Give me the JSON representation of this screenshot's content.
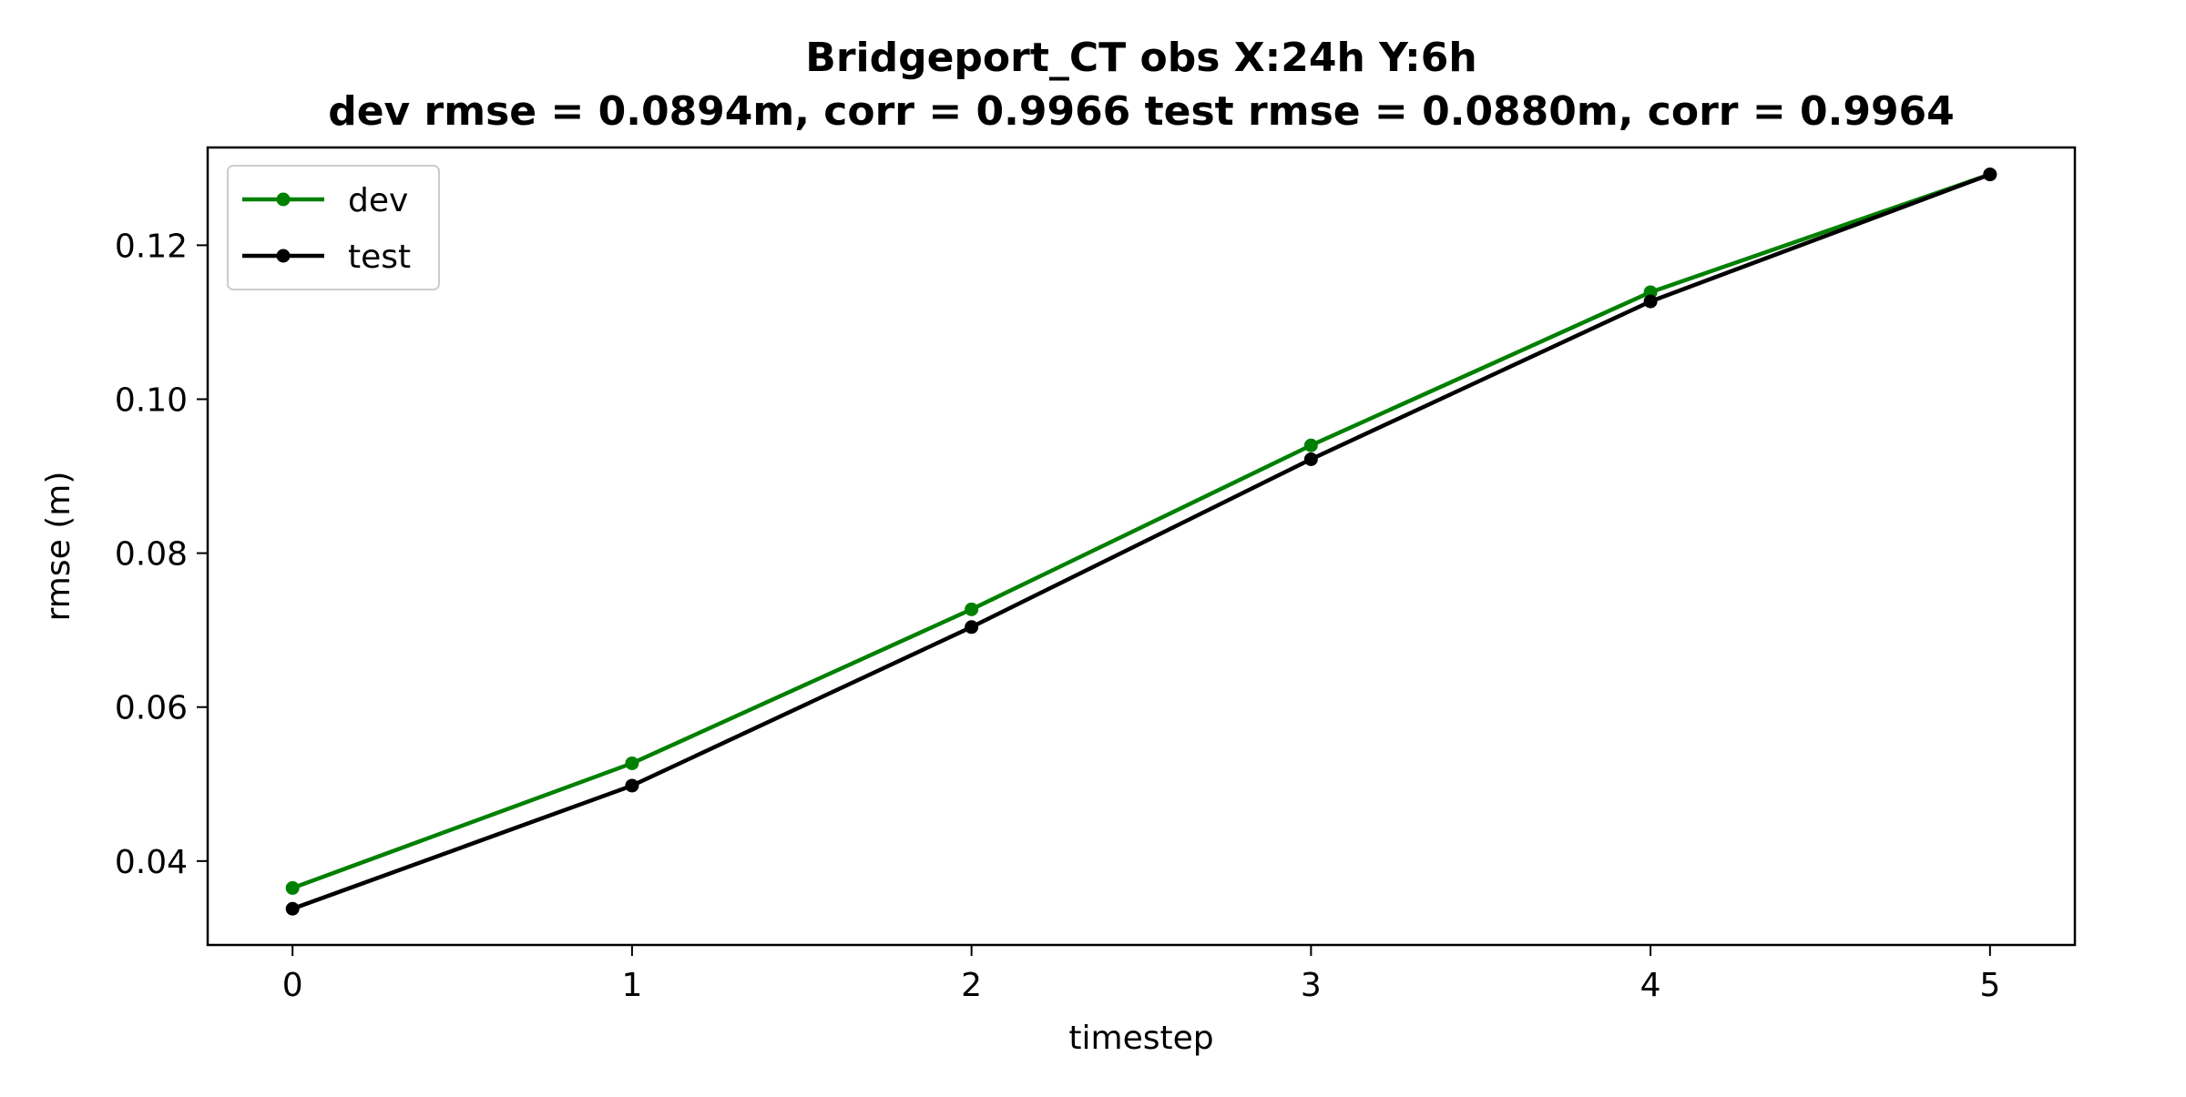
{
  "chart_data": {
    "type": "line",
    "title": "Bridgeport_CT   obs   X:24h   Y:6h",
    "subtitle": "dev rmse = 0.0894m, corr = 0.9966   test rmse = 0.0880m, corr = 0.9964",
    "xlabel": "timestep",
    "ylabel": "rmse (m)",
    "x": [
      0,
      1,
      2,
      3,
      4,
      5
    ],
    "xlim": [
      -0.25,
      5.25
    ],
    "ylim": [
      0.0291,
      0.1327
    ],
    "xticks": [
      0,
      1,
      2,
      3,
      4,
      5
    ],
    "yticks": [
      0.04,
      0.06,
      0.08,
      0.1,
      0.12
    ],
    "ytick_labels": [
      "0.04",
      "0.06",
      "0.08",
      "0.10",
      "0.12"
    ],
    "grid": false,
    "legend_position": "upper-left",
    "series": [
      {
        "name": "dev",
        "color": "#008000",
        "values": [
          0.0365,
          0.0527,
          0.0727,
          0.094,
          0.1139,
          0.1292
        ]
      },
      {
        "name": "test",
        "color": "#000000",
        "values": [
          0.0338,
          0.0498,
          0.0704,
          0.0922,
          0.1127,
          0.1292
        ]
      }
    ]
  }
}
